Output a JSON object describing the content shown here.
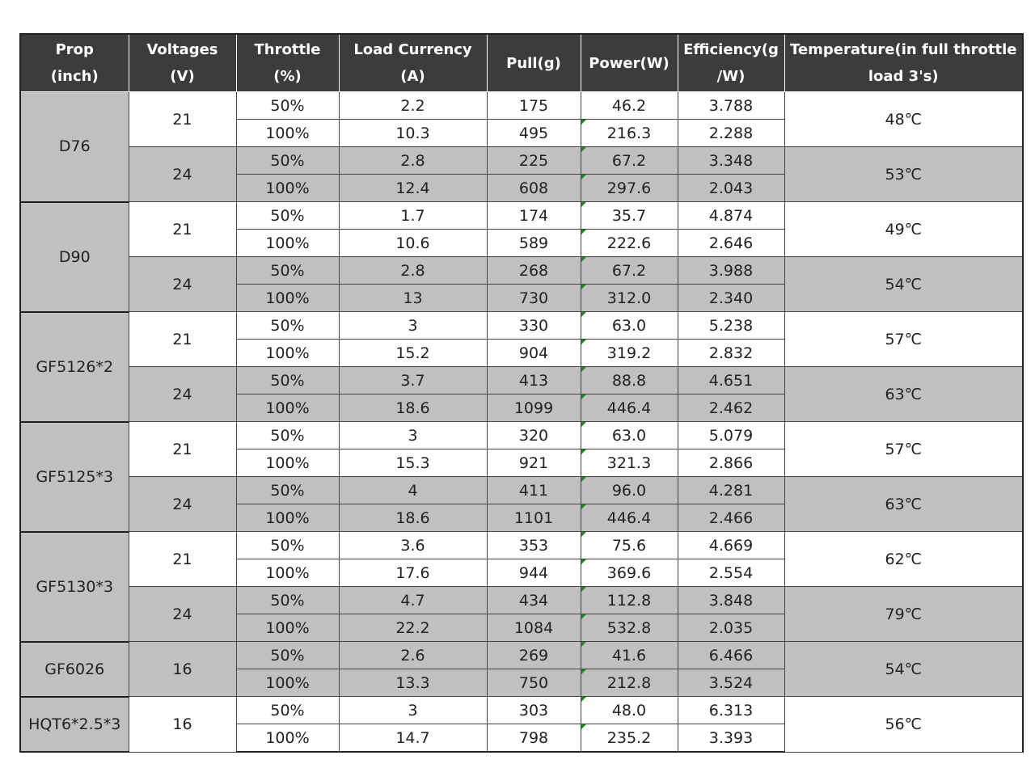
{
  "headers": [
    [
      "Prop",
      "(inch)"
    ],
    [
      "Voltages",
      "(V)"
    ],
    [
      "Throttle",
      "(%)"
    ],
    [
      "Load Currency",
      "(A)"
    ],
    [
      "Pull(g)",
      ""
    ],
    [
      "Power(W)",
      ""
    ],
    [
      "Efficiency(g",
      "/W)"
    ],
    [
      "Temperature(in full throttle",
      "load 3's)"
    ]
  ],
  "props": [
    {
      "prop": "D76",
      "groups": [
        {
          "voltage": "21",
          "temperature": "48℃",
          "rows": [
            {
              "throttle": "50%",
              "current": "2.2",
              "pull": "175",
              "power": "46.2",
              "efficiency": "3.788"
            },
            {
              "throttle": "100%",
              "current": "10.3",
              "pull": "495",
              "power": "216.3",
              "efficiency": "2.288"
            }
          ]
        },
        {
          "voltage": "24",
          "temperature": "53℃",
          "rows": [
            {
              "throttle": "50%",
              "current": "2.8",
              "pull": "225",
              "power": "67.2",
              "efficiency": "3.348"
            },
            {
              "throttle": "100%",
              "current": "12.4",
              "pull": "608",
              "power": "297.6",
              "efficiency": "2.043"
            }
          ]
        }
      ]
    },
    {
      "prop": "D90",
      "groups": [
        {
          "voltage": "21",
          "temperature": "49℃",
          "rows": [
            {
              "throttle": "50%",
              "current": "1.7",
              "pull": "174",
              "power": "35.7",
              "efficiency": "4.874"
            },
            {
              "throttle": "100%",
              "current": "10.6",
              "pull": "589",
              "power": "222.6",
              "efficiency": "2.646"
            }
          ]
        },
        {
          "voltage": "24",
          "temperature": "54℃",
          "rows": [
            {
              "throttle": "50%",
              "current": "2.8",
              "pull": "268",
              "power": "67.2",
              "efficiency": "3.988"
            },
            {
              "throttle": "100%",
              "current": "13",
              "pull": "730",
              "power": "312.0",
              "efficiency": "2.340"
            }
          ]
        }
      ]
    },
    {
      "prop": "GF5126*2",
      "groups": [
        {
          "voltage": "21",
          "temperature": "57℃",
          "rows": [
            {
              "throttle": "50%",
              "current": "3",
              "pull": "330",
              "power": "63.0",
              "efficiency": "5.238"
            },
            {
              "throttle": "100%",
              "current": "15.2",
              "pull": "904",
              "power": "319.2",
              "efficiency": "2.832"
            }
          ]
        },
        {
          "voltage": "24",
          "temperature": "63℃",
          "rows": [
            {
              "throttle": "50%",
              "current": "3.7",
              "pull": "413",
              "power": "88.8",
              "efficiency": "4.651"
            },
            {
              "throttle": "100%",
              "current": "18.6",
              "pull": "1099",
              "power": "446.4",
              "efficiency": "2.462"
            }
          ]
        }
      ]
    },
    {
      "prop": "GF5125*3",
      "groups": [
        {
          "voltage": "21",
          "temperature": "57℃",
          "rows": [
            {
              "throttle": "50%",
              "current": "3",
              "pull": "320",
              "power": "63.0",
              "efficiency": "5.079"
            },
            {
              "throttle": "100%",
              "current": "15.3",
              "pull": "921",
              "power": "321.3",
              "efficiency": "2.866"
            }
          ]
        },
        {
          "voltage": "24",
          "temperature": "63℃",
          "rows": [
            {
              "throttle": "50%",
              "current": "4",
              "pull": "411",
              "power": "96.0",
              "efficiency": "4.281"
            },
            {
              "throttle": "100%",
              "current": "18.6",
              "pull": "1101",
              "power": "446.4",
              "efficiency": "2.466"
            }
          ]
        }
      ]
    },
    {
      "prop": "GF5130*3",
      "groups": [
        {
          "voltage": "21",
          "temperature": "62℃",
          "rows": [
            {
              "throttle": "50%",
              "current": "3.6",
              "pull": "353",
              "power": "75.6",
              "efficiency": "4.669"
            },
            {
              "throttle": "100%",
              "current": "17.6",
              "pull": "944",
              "power": "369.6",
              "efficiency": "2.554"
            }
          ]
        },
        {
          "voltage": "24",
          "temperature": "79℃",
          "rows": [
            {
              "throttle": "50%",
              "current": "4.7",
              "pull": "434",
              "power": "112.8",
              "efficiency": "3.848"
            },
            {
              "throttle": "100%",
              "current": "22.2",
              "pull": "1084",
              "power": "532.8",
              "efficiency": "2.035"
            }
          ]
        }
      ]
    },
    {
      "prop": "GF6026",
      "groups": [
        {
          "voltage": "16",
          "temperature": "54℃",
          "rows": [
            {
              "throttle": "50%",
              "current": "2.6",
              "pull": "269",
              "power": "41.6",
              "efficiency": "6.466"
            },
            {
              "throttle": "100%",
              "current": "13.3",
              "pull": "750",
              "power": "212.8",
              "efficiency": "3.524"
            }
          ]
        }
      ]
    },
    {
      "prop": "HQT6*2.5*3",
      "groups": [
        {
          "voltage": "16",
          "temperature": "56℃",
          "rows": [
            {
              "throttle": "50%",
              "current": "3",
              "pull": "303",
              "power": "48.0",
              "efficiency": "6.313"
            },
            {
              "throttle": "100%",
              "current": "14.7",
              "pull": "798",
              "power": "235.2",
              "efficiency": "3.393"
            }
          ]
        }
      ]
    }
  ],
  "colors": {
    "header_bg": "#3c3c3c",
    "shade_bg": "#c0c0c0",
    "marker": "#1f8a1f"
  }
}
